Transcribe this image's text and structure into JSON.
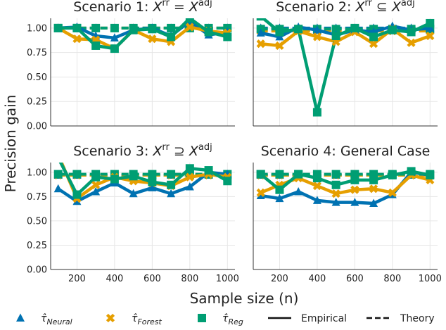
{
  "chart_data": {
    "type": "line",
    "ylabel": "Precision gain",
    "xlabel": "Sample size (n)",
    "x": [
      100,
      200,
      300,
      400,
      500,
      600,
      700,
      800,
      900,
      1000
    ],
    "xticks": [
      200,
      400,
      600,
      800,
      1000
    ],
    "xtick_labels": [
      "200",
      "400",
      "600",
      "800",
      "1000"
    ],
    "yticks": [
      0.0,
      0.25,
      0.5,
      0.75,
      1.0
    ],
    "ytick_labels": [
      "0.00",
      "0.25",
      "0.50",
      "0.75",
      "1.00"
    ],
    "xlim": [
      60,
      1040
    ],
    "ylim": [
      0.0,
      1.1
    ],
    "colors": {
      "neural": "#0072b2",
      "forest": "#e69f00",
      "reg": "#009e73"
    },
    "legend": {
      "neural": "τ̂_Neural",
      "forest": "τ̂_Forest",
      "reg": "τ̂_Reg",
      "empirical": "Empirical",
      "theory": "Theory"
    },
    "panels": [
      {
        "title_parts": [
          "Scenario 1: ",
          "X",
          "rr",
          " = ",
          "X",
          "adj"
        ],
        "empirical": {
          "neural": [
            1.0,
            1.01,
            0.92,
            0.9,
            0.98,
            1.0,
            0.92,
            1.07,
            0.93,
            0.96
          ],
          "forest": [
            1.0,
            0.89,
            0.88,
            0.79,
            0.98,
            0.89,
            0.86,
            1.01,
            0.97,
            0.95
          ],
          "reg": [
            1.0,
            1.0,
            0.82,
            0.79,
            0.98,
            0.99,
            0.91,
            1.1,
            0.96,
            0.91
          ]
        },
        "theory": {
          "neural": 1.0,
          "forest": 1.0,
          "reg": 1.0
        }
      },
      {
        "title_parts": [
          "Scenario 2: ",
          "X",
          "rr",
          " ⊆ ",
          "X",
          "adj"
        ],
        "empirical": {
          "neural": [
            0.95,
            0.91,
            1.01,
            0.98,
            0.93,
            0.98,
            0.96,
            1.02,
            0.98,
            1.0
          ],
          "forest": [
            0.84,
            0.82,
            0.97,
            0.91,
            0.86,
            0.96,
            0.84,
            0.99,
            0.85,
            0.92
          ],
          "reg": [
            1.12,
            0.96,
            0.99,
            0.14,
            0.92,
            1.0,
            0.91,
            0.98,
            0.96,
            1.05
          ]
        },
        "theory": {
          "neural": 1.0,
          "forest": 0.97,
          "reg": 0.99
        }
      },
      {
        "title_parts": [
          "Scenario 3: ",
          "X",
          "rr",
          " ⊇ ",
          "X",
          "adj"
        ],
        "empirical": {
          "neural": [
            0.83,
            0.7,
            0.8,
            0.89,
            0.78,
            0.84,
            0.78,
            0.85,
            1.0,
            0.98
          ],
          "forest": [
            1.18,
            0.73,
            0.87,
            0.95,
            0.91,
            0.89,
            0.86,
            0.95,
            0.98,
            0.95
          ],
          "reg": [
            1.15,
            0.77,
            0.95,
            0.93,
            0.96,
            0.9,
            0.87,
            1.04,
            1.02,
            0.91
          ]
        },
        "theory": {
          "neural": 0.97,
          "forest": 0.97,
          "reg": 0.98
        }
      },
      {
        "title_parts": [
          "Scenario 4: General Case"
        ],
        "empirical": {
          "neural": [
            0.76,
            0.73,
            0.8,
            0.71,
            0.69,
            0.69,
            0.68,
            0.77,
            1.0,
            0.97
          ],
          "forest": [
            0.79,
            0.87,
            0.94,
            0.86,
            0.78,
            0.82,
            0.83,
            0.79,
            0.97,
            0.92
          ],
          "reg": [
            0.98,
            0.82,
            0.98,
            0.94,
            0.87,
            0.92,
            0.92,
            0.97,
            1.01,
            0.97
          ]
        },
        "theory": {
          "neural": 0.97,
          "forest": 0.97,
          "reg": 0.98
        }
      }
    ]
  }
}
